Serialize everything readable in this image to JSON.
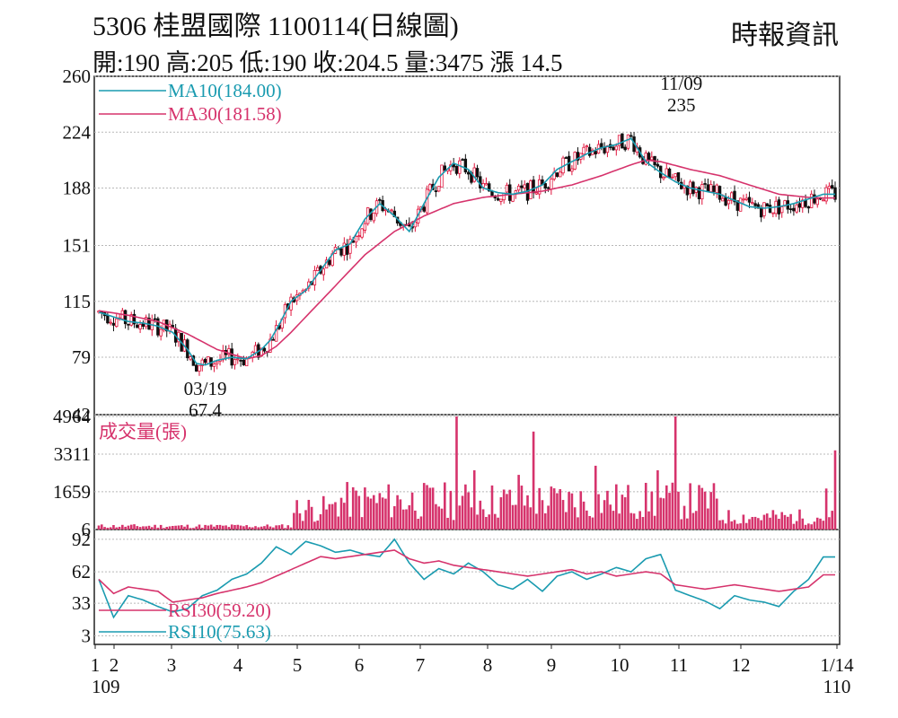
{
  "header": {
    "title": "5306  桂盟國際 1100114(日線圖)",
    "ohlc": "開:190 高:205 低:190 收:204.5 量:3475 漲 14.5",
    "source": "時報資訊"
  },
  "colors": {
    "up": "#e0143c",
    "down": "#111111",
    "ma10": "#1a9bb0",
    "ma30": "#d6336c",
    "volume": "#d6336c",
    "rsi10": "#1a9bb0",
    "rsi30": "#d6336c",
    "grid": "#b8b8b8"
  },
  "chart_data": [
    {
      "type": "candlestick",
      "title": "5306  桂盟國際 1100114(日線圖)",
      "ylim": [
        42,
        260
      ],
      "y_ticks": [
        "260",
        "224",
        "188",
        "151",
        "115",
        "79",
        "42"
      ],
      "x_ticks": [
        "1",
        "2",
        "3",
        "4",
        "5",
        "6",
        "7",
        "8",
        "9",
        "10",
        "11",
        "12",
        "1/14"
      ],
      "x_sublabels": [
        "109",
        "110"
      ],
      "series": [
        {
          "name": "MA10(184.00)",
          "type": "line",
          "x": [
            0,
            5,
            10,
            15,
            20,
            25,
            30,
            33,
            36,
            40,
            45,
            50,
            55,
            58,
            61,
            65,
            70,
            75,
            80,
            85,
            90,
            95,
            100,
            105,
            110,
            115,
            120,
            125,
            130,
            135,
            140,
            145,
            150,
            155,
            160,
            165,
            170,
            175,
            180,
            185,
            190,
            195,
            200,
            205,
            210,
            215,
            220,
            225,
            230,
            235,
            240,
            245
          ],
          "values": [
            108,
            105,
            102,
            101,
            99,
            95,
            84,
            75,
            74,
            77,
            79,
            78,
            84,
            90,
            100,
            115,
            122,
            135,
            148,
            152,
            168,
            178,
            170,
            160,
            178,
            195,
            204,
            200,
            188,
            185,
            184,
            186,
            190,
            200,
            205,
            210,
            214,
            216,
            220,
            205,
            198,
            192,
            188,
            186,
            184,
            180,
            176,
            175,
            176,
            178,
            181,
            184
          ]
        },
        {
          "name": "MA30(181.58)",
          "type": "line",
          "x": [
            0,
            10,
            20,
            30,
            40,
            50,
            55,
            60,
            65,
            70,
            80,
            90,
            100,
            110,
            120,
            130,
            140,
            150,
            160,
            170,
            180,
            185,
            190,
            200,
            210,
            220,
            230,
            240,
            245
          ],
          "values": [
            109,
            106,
            102,
            94,
            84,
            78,
            80,
            86,
            95,
            105,
            125,
            145,
            160,
            170,
            178,
            182,
            184,
            186,
            190,
            196,
            203,
            206,
            205,
            200,
            196,
            190,
            184,
            182,
            181.58
          ]
        }
      ],
      "annotations": [
        {
          "text": "11/09",
          "x": 197,
          "y": 252
        },
        {
          "text": "235",
          "x": 197,
          "y": 238
        },
        {
          "text": "03/19",
          "x": 36,
          "y": 52
        },
        {
          "text": "67.4",
          "x": 36,
          "y": 40
        }
      ]
    },
    {
      "type": "bar",
      "title": "成交量(張)",
      "ylim": [
        0,
        4964
      ],
      "y_ticks": [
        "4964",
        "3311",
        "1659",
        "6"
      ]
    },
    {
      "type": "line",
      "ylim": [
        0,
        96
      ],
      "y_ticks": [
        "92",
        "62",
        "33",
        "3"
      ],
      "series": [
        {
          "name": "RSI30(59.20)",
          "x": [
            0,
            5,
            10,
            15,
            20,
            25,
            30,
            35,
            40,
            45,
            50,
            55,
            60,
            65,
            70,
            75,
            80,
            85,
            90,
            95,
            100,
            105,
            110,
            115,
            120,
            125,
            130,
            135,
            140,
            145,
            150,
            155,
            160,
            165,
            170,
            175,
            180,
            185,
            190,
            195,
            200,
            205,
            210,
            215,
            220,
            225,
            230,
            235,
            240,
            245
          ],
          "values": [
            55,
            42,
            48,
            46,
            44,
            34,
            36,
            38,
            42,
            45,
            48,
            52,
            58,
            64,
            70,
            76,
            74,
            76,
            78,
            80,
            82,
            74,
            70,
            72,
            68,
            66,
            64,
            62,
            60,
            58,
            60,
            62,
            64,
            60,
            62,
            58,
            60,
            62,
            60,
            50,
            48,
            46,
            48,
            50,
            48,
            46,
            44,
            46,
            48,
            59.2
          ]
        },
        {
          "name": "RSI10(75.63)",
          "x": [
            0,
            5,
            10,
            15,
            20,
            25,
            30,
            35,
            40,
            45,
            50,
            55,
            60,
            65,
            70,
            75,
            80,
            85,
            90,
            95,
            100,
            105,
            110,
            115,
            120,
            125,
            130,
            135,
            140,
            145,
            150,
            155,
            160,
            165,
            170,
            175,
            180,
            185,
            190,
            195,
            200,
            205,
            210,
            215,
            220,
            225,
            230,
            235,
            240,
            245
          ],
          "values": [
            55,
            20,
            40,
            36,
            30,
            25,
            28,
            40,
            45,
            55,
            60,
            70,
            85,
            78,
            90,
            86,
            80,
            82,
            78,
            76,
            92,
            70,
            55,
            65,
            60,
            70,
            62,
            50,
            46,
            55,
            44,
            58,
            62,
            55,
            60,
            66,
            62,
            74,
            78,
            45,
            40,
            35,
            28,
            40,
            36,
            34,
            30,
            44,
            55,
            75.63
          ]
        }
      ]
    }
  ]
}
